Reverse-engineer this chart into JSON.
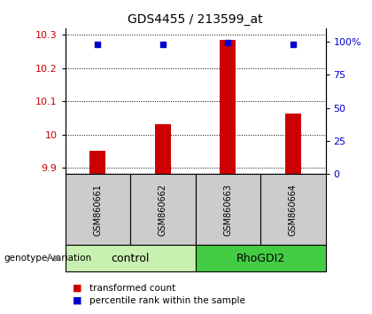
{
  "title": "GDS4455 / 213599_at",
  "samples": [
    "GSM860661",
    "GSM860662",
    "GSM860663",
    "GSM860664"
  ],
  "bar_values": [
    9.952,
    10.03,
    10.285,
    10.062
  ],
  "percentile_values": [
    98,
    98,
    99,
    98
  ],
  "ylim_left": [
    9.88,
    10.32
  ],
  "ylim_right": [
    0,
    110
  ],
  "yticks_left": [
    9.9,
    10.0,
    10.1,
    10.2,
    10.3
  ],
  "ytick_labels_left": [
    "9.9",
    "10",
    "10.1",
    "10.2",
    "10.3"
  ],
  "yticks_right": [
    0,
    25,
    50,
    75,
    100
  ],
  "ytick_labels_right": [
    "0",
    "25",
    "50",
    "75",
    "100%"
  ],
  "bar_color": "#cc0000",
  "scatter_color": "#0000cc",
  "bar_width": 0.25,
  "bg_color": "#ffffff",
  "sample_area_color": "#cccccc",
  "control_color": "#c8f0b0",
  "rho_color": "#44cc44",
  "legend_bar_label": "transformed count",
  "legend_scatter_label": "percentile rank within the sample",
  "genotype_label": "genotype/variation"
}
